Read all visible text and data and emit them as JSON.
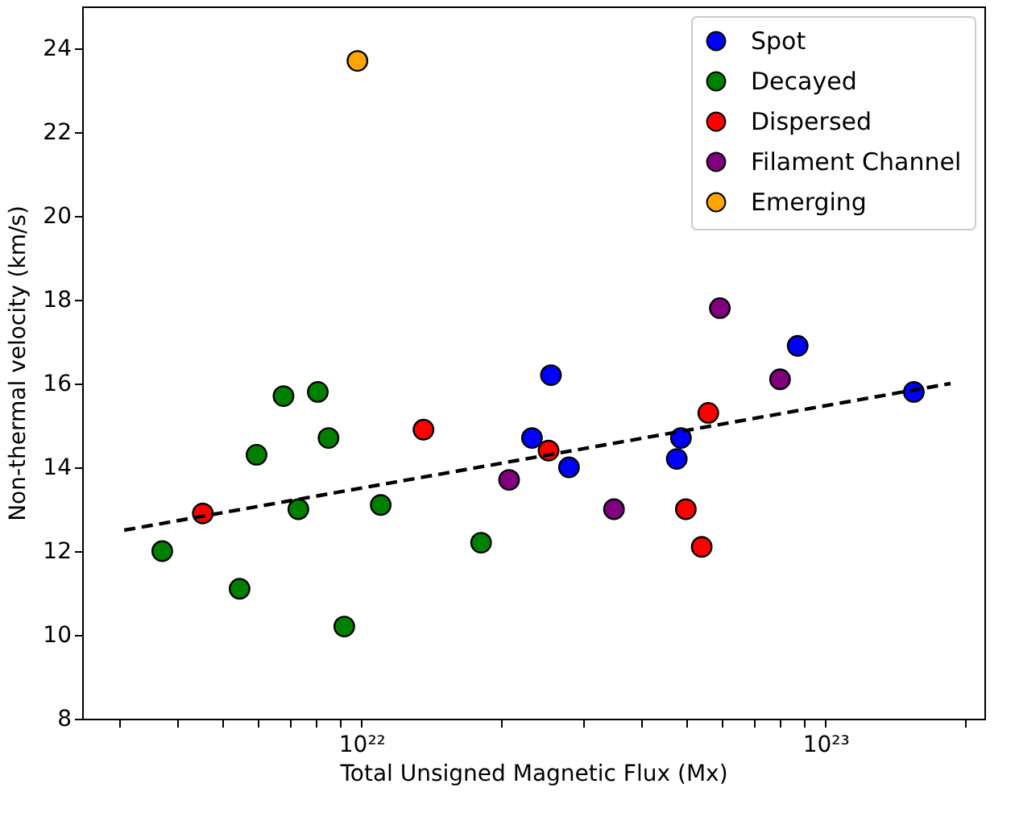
{
  "chart_data": {
    "type": "scatter",
    "xlabel": "Total Unsigned Magnetic Flux (Mx)",
    "ylabel": "Non-thermal velocity (km/s)",
    "log": "x",
    "marker": "circle",
    "legend": "top right",
    "grid": false,
    "xlim": [
      2.5e+21,
      2.2e+23
    ],
    "xticks": [
      {
        "value": 3e+21,
        "label": null
      },
      {
        "value": 4e+21,
        "label": null
      },
      {
        "value": 5e+21,
        "label": null
      },
      {
        "value": 6e+21,
        "label": null
      },
      {
        "value": 7e+21,
        "label": null
      },
      {
        "value": 8e+21,
        "label": null
      },
      {
        "value": 9e+21,
        "label": null
      },
      {
        "value": 1e+22,
        "label": "10²²"
      },
      {
        "value": 2e+22,
        "label": null
      },
      {
        "value": 3e+22,
        "label": null
      },
      {
        "value": 4e+22,
        "label": null
      },
      {
        "value": 5e+22,
        "label": null
      },
      {
        "value": 6e+22,
        "label": null
      },
      {
        "value": 7e+22,
        "label": null
      },
      {
        "value": 8e+22,
        "label": null
      },
      {
        "value": 9e+22,
        "label": null
      },
      {
        "value": 1e+23,
        "label": "10²³"
      },
      {
        "value": 2e+23,
        "label": null
      }
    ],
    "ylim": [
      8,
      25
    ],
    "yticks": [
      8,
      10,
      12,
      14,
      16,
      18,
      20,
      22,
      24
    ],
    "series": [
      {
        "name": "Spot",
        "color": "#0000ff",
        "x": [
          2.33e+22,
          2.56e+22,
          2.8e+22,
          4.78e+22,
          4.88e+22,
          8.71e+22,
          1.55e+23
        ],
        "values": [
          14.7,
          16.2,
          14.0,
          14.2,
          14.7,
          16.9,
          15.8
        ]
      },
      {
        "name": "Decayed",
        "color": "#008000",
        "x": [
          3.72e+21,
          5.46e+21,
          5.94e+21,
          6.79e+21,
          7.31e+21,
          8.05e+21,
          8.49e+21,
          9.18e+21,
          1.1e+22,
          1.81e+22
        ],
        "values": [
          12.0,
          11.1,
          14.3,
          15.7,
          13.0,
          15.8,
          14.7,
          10.2,
          13.1,
          12.2
        ]
      },
      {
        "name": "Dispersed",
        "color": "#ff0000",
        "x": [
          4.55e+21,
          1.36e+22,
          2.53e+22,
          5e+22,
          5.41e+22,
          5.59e+22
        ],
        "values": [
          12.9,
          14.9,
          14.4,
          13.0,
          12.1,
          15.3
        ]
      },
      {
        "name": "Filament Channel",
        "color": "#800080",
        "x": [
          2.08e+22,
          3.5e+22,
          5.92e+22,
          7.98e+22
        ],
        "values": [
          13.7,
          13.0,
          17.8,
          16.1
        ]
      },
      {
        "name": "Emerging",
        "color": "#ffa500",
        "x": [
          9.8e+21
        ],
        "values": [
          23.7
        ]
      },
      {
        "type": "line",
        "color": "#000000",
        "line_style": "dashed",
        "marker": "none",
        "x": [
          3.08e+21,
          1.86e+23
        ],
        "values": [
          12.5,
          16.0
        ]
      }
    ]
  }
}
